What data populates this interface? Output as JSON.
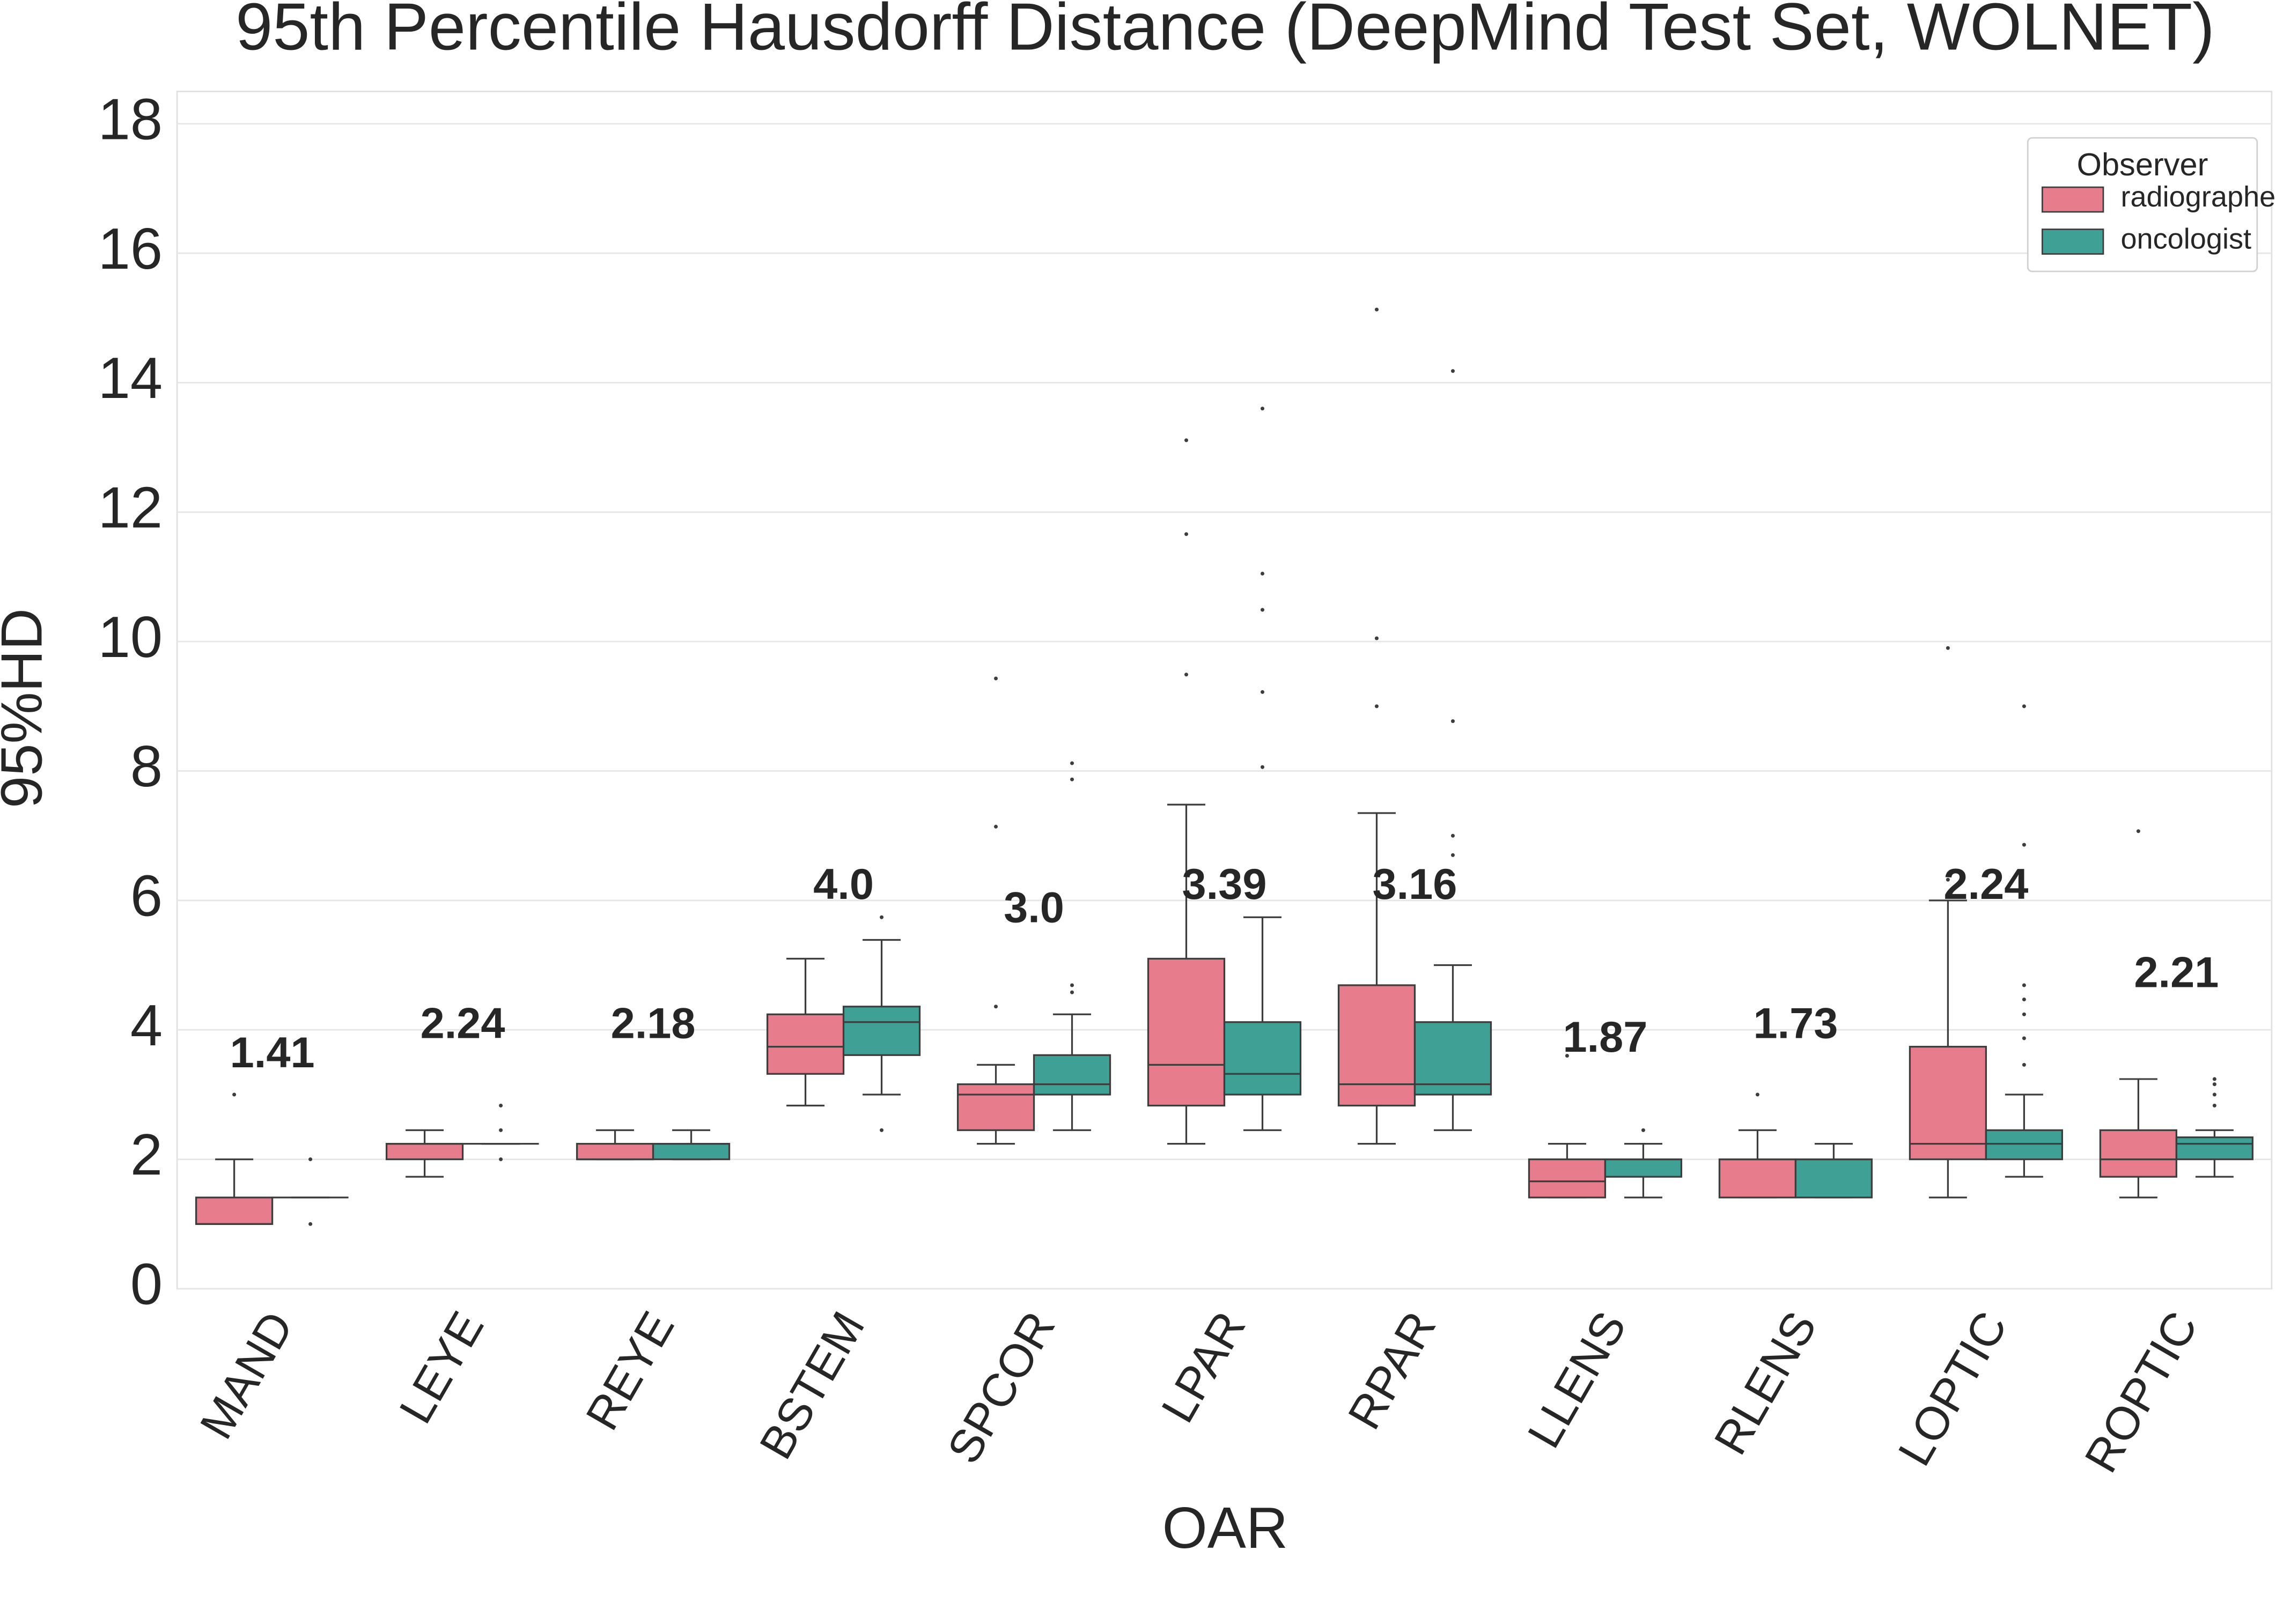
{
  "chart_data": {
    "type": "box",
    "title": "95th Percentile Hausdorff Distance (DeepMind Test Set, WOLNET)",
    "x_label": "OAR",
    "y_label": "95%HD",
    "categories": [
      "MAND",
      "LEYE",
      "REYE",
      "BSTEM",
      "SPCOR",
      "LPAR",
      "RPAR",
      "LLENS",
      "RLENS",
      "LOPTIC",
      "ROPTIC"
    ],
    "annotations": [
      "1.41",
      "2.24",
      "2.18",
      "4.0",
      "3.0",
      "3.39",
      "3.16",
      "1.87",
      "1.73",
      "2.24",
      "2.21"
    ],
    "legend_title": "Observer",
    "legend_position": "upper right",
    "grid": true,
    "ylim": [
      0,
      18.5
    ],
    "yticks": [
      0,
      2,
      4,
      6,
      8,
      10,
      12,
      14,
      16,
      18
    ],
    "series": [
      {
        "name": "radiographer",
        "color": "#e77c8d",
        "values": [
          {
            "low": 1.0,
            "q1": 1.0,
            "median": 1.0,
            "q3": 1.41,
            "high": 2.0,
            "outliers": [
              3.0
            ]
          },
          {
            "low": 1.73,
            "q1": 2.0,
            "median": 2.24,
            "q3": 2.24,
            "high": 2.45,
            "outliers": []
          },
          {
            "low": 2.0,
            "q1": 2.0,
            "median": 2.0,
            "q3": 2.24,
            "high": 2.45,
            "outliers": []
          },
          {
            "low": 2.83,
            "q1": 3.32,
            "median": 3.74,
            "q3": 4.24,
            "high": 5.1,
            "outliers": []
          },
          {
            "low": 2.24,
            "q1": 2.45,
            "median": 3.0,
            "q3": 3.16,
            "high": 3.46,
            "outliers": [
              4.36,
              7.14,
              9.43
            ]
          },
          {
            "low": 2.24,
            "q1": 2.83,
            "median": 3.46,
            "q3": 5.1,
            "high": 7.48,
            "outliers": [
              9.49,
              11.66,
              13.11
            ]
          },
          {
            "low": 2.24,
            "q1": 2.83,
            "median": 3.16,
            "q3": 4.69,
            "high": 7.35,
            "outliers": [
              9.0,
              10.05,
              15.13
            ]
          },
          {
            "low": 1.41,
            "q1": 1.41,
            "median": 1.66,
            "q3": 2.0,
            "high": 2.24,
            "outliers": [
              3.6
            ]
          },
          {
            "low": 1.41,
            "q1": 1.41,
            "median": 2.0,
            "q3": 2.0,
            "high": 2.45,
            "outliers": [
              3.0
            ]
          },
          {
            "low": 1.41,
            "q1": 2.0,
            "median": 2.24,
            "q3": 3.74,
            "high": 6.0,
            "outliers": [
              6.32,
              9.9
            ]
          },
          {
            "low": 1.41,
            "q1": 1.73,
            "median": 2.0,
            "q3": 2.45,
            "high": 3.24,
            "outliers": [
              7.07
            ]
          }
        ]
      },
      {
        "name": "oncologist",
        "color": "#3fa196",
        "values": [
          {
            "low": 1.41,
            "q1": 1.41,
            "median": 1.41,
            "q3": 1.41,
            "high": 1.41,
            "outliers": [
              2.0,
              1.0
            ]
          },
          {
            "low": 2.24,
            "q1": 2.24,
            "median": 2.24,
            "q3": 2.24,
            "high": 2.24,
            "outliers": [
              2.0,
              2.45,
              2.83
            ]
          },
          {
            "low": 2.0,
            "q1": 2.0,
            "median": 2.24,
            "q3": 2.24,
            "high": 2.45,
            "outliers": []
          },
          {
            "low": 3.0,
            "q1": 3.61,
            "median": 4.12,
            "q3": 4.36,
            "high": 5.39,
            "outliers": [
              2.45,
              5.74
            ]
          },
          {
            "low": 2.45,
            "q1": 3.0,
            "median": 3.16,
            "q3": 3.61,
            "high": 4.24,
            "outliers": [
              4.58,
              4.69,
              7.87,
              8.12
            ]
          },
          {
            "low": 2.45,
            "q1": 3.0,
            "median": 3.32,
            "q3": 4.12,
            "high": 5.74,
            "outliers": [
              8.06,
              9.22,
              10.49,
              11.05,
              13.6
            ]
          },
          {
            "low": 2.45,
            "q1": 3.0,
            "median": 3.16,
            "q3": 4.12,
            "high": 5.0,
            "outliers": [
              6.4,
              6.7,
              7.0,
              8.77,
              14.18
            ]
          },
          {
            "low": 1.41,
            "q1": 1.73,
            "median": 2.0,
            "q3": 2.0,
            "high": 2.24,
            "outliers": [
              2.45
            ]
          },
          {
            "low": 1.41,
            "q1": 1.41,
            "median": 2.0,
            "q3": 2.0,
            "high": 2.24,
            "outliers": []
          },
          {
            "low": 1.73,
            "q1": 2.0,
            "median": 2.24,
            "q3": 2.45,
            "high": 3.0,
            "outliers": [
              3.46,
              3.87,
              4.24,
              4.47,
              4.69,
              6.86,
              9.0
            ]
          },
          {
            "low": 1.73,
            "q1": 2.0,
            "median": 2.24,
            "q3": 2.34,
            "high": 2.45,
            "outliers": [
              2.83,
              3.0,
              3.16,
              3.24
            ]
          }
        ]
      }
    ]
  }
}
